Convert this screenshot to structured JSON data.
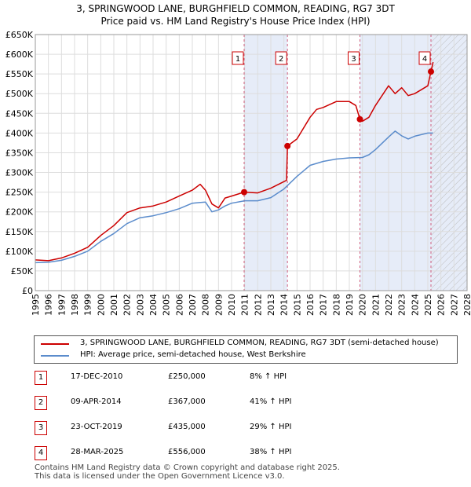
{
  "header": {
    "title_line1": "3, SPRINGWOOD LANE, BURGHFIELD COMMON, READING, RG7 3DT",
    "title_line2": "Price paid vs. HM Land Registry's House Price Index (HPI)"
  },
  "colors": {
    "property": "#cc0000",
    "hpi": "#5b8ccc",
    "marker_line": "#d06080",
    "shade": "#e6ecf8",
    "grid": "#dddddd"
  },
  "chart_data": {
    "type": "line",
    "xlim": [
      1995,
      2028
    ],
    "ylim": [
      0,
      650000
    ],
    "x_ticks": [
      1995,
      1996,
      1997,
      1998,
      1999,
      2000,
      2001,
      2002,
      2003,
      2004,
      2005,
      2006,
      2007,
      2008,
      2009,
      2010,
      2011,
      2012,
      2013,
      2014,
      2015,
      2016,
      2017,
      2018,
      2019,
      2020,
      2021,
      2022,
      2023,
      2024,
      2025,
      2026,
      2027,
      2028
    ],
    "y_ticks": [
      0,
      50000,
      100000,
      150000,
      200000,
      250000,
      300000,
      350000,
      400000,
      450000,
      500000,
      550000,
      600000,
      650000
    ],
    "y_tick_labels": [
      "£0",
      "£50K",
      "£100K",
      "£150K",
      "£200K",
      "£250K",
      "£300K",
      "£350K",
      "£400K",
      "£450K",
      "£500K",
      "£550K",
      "£600K",
      "£650K"
    ],
    "future_shade_from": 2025.25,
    "series": [
      {
        "name": "property",
        "x": [
          1995,
          1996,
          1997,
          1998,
          1999,
          2000,
          2001,
          2002,
          2003,
          2004,
          2005,
          2006,
          2007,
          2007.6,
          2008,
          2008.5,
          2009,
          2009.5,
          2010,
          2010.96,
          2011,
          2012,
          2013,
          2014.2,
          2014.27,
          2015,
          2016,
          2016.5,
          2017,
          2018,
          2019,
          2019.5,
          2019.81,
          2020,
          2020.5,
          2021,
          2022,
          2022.5,
          2023,
          2023.5,
          2024,
          2024.5,
          2025,
          2025.24,
          2025.4
        ],
        "y": [
          78000,
          76000,
          83000,
          95000,
          110000,
          140000,
          165000,
          198000,
          210000,
          215000,
          225000,
          240000,
          255000,
          270000,
          255000,
          220000,
          210000,
          235000,
          240000,
          250000,
          250000,
          248000,
          260000,
          280000,
          367000,
          385000,
          440000,
          460000,
          465000,
          480000,
          480000,
          470000,
          435000,
          430000,
          440000,
          470000,
          520000,
          500000,
          515000,
          495000,
          500000,
          510000,
          520000,
          556000,
          580000
        ]
      },
      {
        "name": "hpi",
        "x": [
          1995,
          1996,
          1997,
          1998,
          1999,
          2000,
          2001,
          2002,
          2003,
          2004,
          2005,
          2006,
          2007,
          2008,
          2008.5,
          2009,
          2009.5,
          2010,
          2011,
          2012,
          2013,
          2014,
          2015,
          2016,
          2017,
          2018,
          2019,
          2020,
          2020.5,
          2021,
          2022,
          2022.5,
          2023,
          2023.5,
          2024,
          2025,
          2025.4
        ],
        "y": [
          71000,
          72000,
          77000,
          87000,
          100000,
          125000,
          145000,
          170000,
          185000,
          190000,
          198000,
          208000,
          222000,
          225000,
          200000,
          205000,
          215000,
          222000,
          228000,
          228000,
          236000,
          258000,
          290000,
          318000,
          328000,
          334000,
          337000,
          338000,
          345000,
          358000,
          390000,
          405000,
          393000,
          385000,
          392000,
          400000,
          400000
        ]
      }
    ],
    "sales": [
      {
        "id": "1",
        "x": 2010.96,
        "y": 250000
      },
      {
        "id": "2",
        "x": 2014.27,
        "y": 367000
      },
      {
        "id": "3",
        "x": 2019.81,
        "y": 435000
      },
      {
        "id": "4",
        "x": 2025.24,
        "y": 556000
      }
    ]
  },
  "legend": {
    "property_label": "3, SPRINGWOOD LANE, BURGHFIELD COMMON, READING, RG7 3DT (semi-detached house)",
    "hpi_label": "HPI: Average price, semi-detached house, West Berkshire"
  },
  "sales_table": [
    {
      "id": "1",
      "date": "17-DEC-2010",
      "price": "£250,000",
      "hpi": "8% ↑ HPI"
    },
    {
      "id": "2",
      "date": "09-APR-2014",
      "price": "£367,000",
      "hpi": "41% ↑ HPI"
    },
    {
      "id": "3",
      "date": "23-OCT-2019",
      "price": "£435,000",
      "hpi": "29% ↑ HPI"
    },
    {
      "id": "4",
      "date": "28-MAR-2025",
      "price": "£556,000",
      "hpi": "38% ↑ HPI"
    }
  ],
  "footer": {
    "line1": "Contains HM Land Registry data © Crown copyright and database right 2025.",
    "line2": "This data is licensed under the Open Government Licence v3.0."
  }
}
